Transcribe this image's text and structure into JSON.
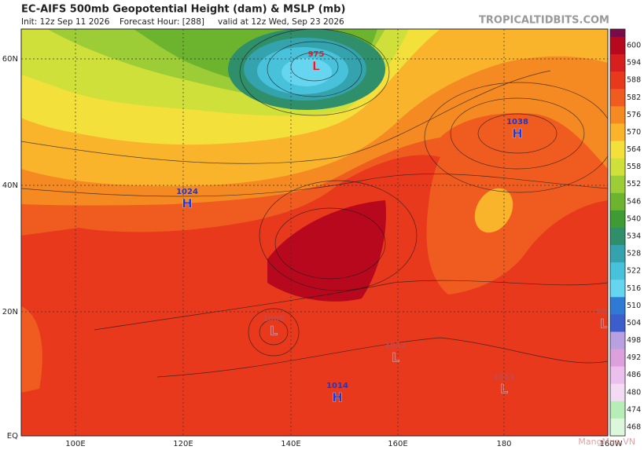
{
  "header": {
    "title": "EC-AIFS 500mb Geopotential Height (dam) & MSLP (mb)",
    "init": "Init: 12z Sep 11 2026",
    "forecast_hour": "Forecast Hour: [288]",
    "valid": "valid at 12z Wed, Sep 23 2026",
    "site": "TROPICALTIDBITS.COM"
  },
  "axes": {
    "lat_labels": [
      "60N",
      "40N",
      "20N",
      "EQ"
    ],
    "lon_labels": [
      "100E",
      "120E",
      "140E",
      "160E",
      "180",
      "160W"
    ]
  },
  "colorbar": {
    "top_color": "#7a0a48",
    "labels": [
      600,
      594,
      588,
      582,
      576,
      570,
      564,
      558,
      552,
      546,
      540,
      534,
      528,
      522,
      516,
      510,
      504,
      498,
      492,
      486,
      480,
      474,
      468
    ],
    "colors": [
      "#b8081e",
      "#d81f1f",
      "#e8391d",
      "#f05c20",
      "#f68a22",
      "#f9b42c",
      "#f4e03a",
      "#cfe03a",
      "#9ccc36",
      "#6cb42e",
      "#3f9c34",
      "#2f8f6a",
      "#35a3ad",
      "#48c2da",
      "#66d5ef",
      "#2e7ad4",
      "#3c5ecc",
      "#b9a0e0",
      "#dca0dc",
      "#ecc0ec",
      "#f3dcf3",
      "#b7eeb7",
      "#dcf7dc"
    ]
  },
  "centers": [
    {
      "letter": "L",
      "pressure": "975"
    },
    {
      "letter": "H",
      "pressure": "1038"
    },
    {
      "letter": "H",
      "pressure": "1024"
    },
    {
      "letter": "L",
      "pressure": "1008"
    },
    {
      "letter": "L",
      "pressure": "1012"
    },
    {
      "letter": "H",
      "pressure": "1014"
    },
    {
      "letter": "L",
      "pressure": "1011"
    },
    {
      "letter": "L",
      "pressure": "998"
    }
  ],
  "watermark": "MangMua.VN"
}
